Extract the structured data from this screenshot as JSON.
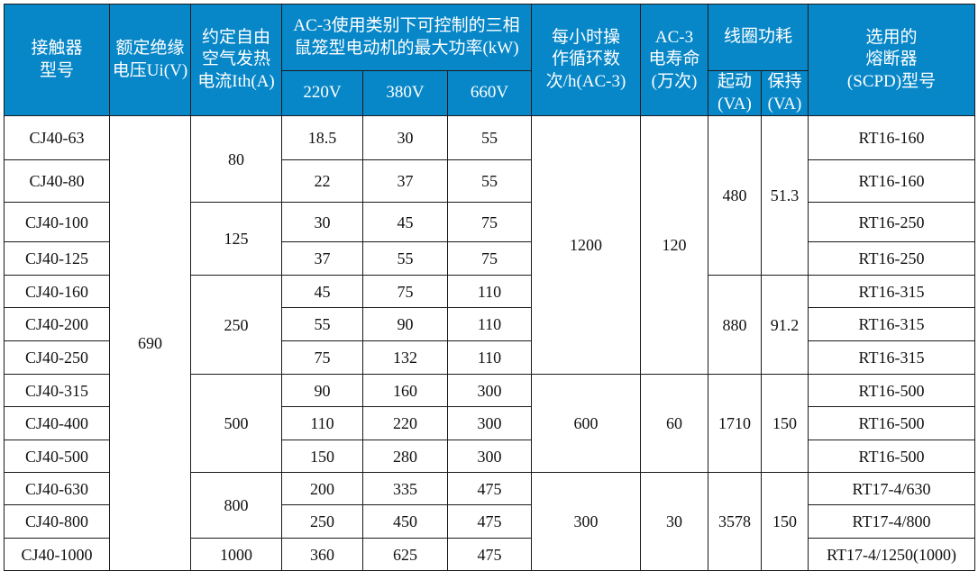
{
  "colors": {
    "header_bg": "#0787c8",
    "header_text": "#ffffff",
    "border": "#1a1a1a"
  },
  "header": {
    "model": "接触器\n型号",
    "ui": "额定绝缘\n电压Ui(V)",
    "ith": "约定自由\n空气发热\n电流Ith(A)",
    "power": "AC-3使用类别下可控制的三相\n鼠笼型电动机的最大功率(kW)",
    "power_sub": [
      "220V",
      "380V",
      "660V"
    ],
    "cycles": "每小时操\n作循环数\n次/h(AC-3)",
    "life": "AC-3\n电寿命\n(万次)",
    "coil": "线圈功耗",
    "coil_sub": [
      "起动\n(VA)",
      "保持\n(VA)"
    ],
    "fuse": "选用的\n熔断器\n(SCPD)型号"
  },
  "rows": [
    {
      "model": "CJ40-63",
      "p220": "18.5",
      "p380": "30",
      "p660": "55",
      "fuse": "RT16-160"
    },
    {
      "model": "CJ40-80",
      "p220": "22",
      "p380": "37",
      "p660": "55",
      "fuse": "RT16-160"
    },
    {
      "model": "CJ40-100",
      "p220": "30",
      "p380": "45",
      "p660": "75",
      "fuse": "RT16-250"
    },
    {
      "model": "CJ40-125",
      "p220": "37",
      "p380": "55",
      "p660": "75",
      "fuse": "RT16-250"
    },
    {
      "model": "CJ40-160",
      "p220": "45",
      "p380": "75",
      "p660": "110",
      "fuse": "RT16-315"
    },
    {
      "model": "CJ40-200",
      "p220": "55",
      "p380": "90",
      "p660": "110",
      "fuse": "RT16-315"
    },
    {
      "model": "CJ40-250",
      "p220": "75",
      "p380": "132",
      "p660": "110",
      "fuse": "RT16-315"
    },
    {
      "model": "CJ40-315",
      "p220": "90",
      "p380": "160",
      "p660": "300",
      "fuse": "RT16-500"
    },
    {
      "model": "CJ40-400",
      "p220": "110",
      "p380": "220",
      "p660": "300",
      "fuse": "RT16-500"
    },
    {
      "model": "CJ40-500",
      "p220": "150",
      "p380": "280",
      "p660": "300",
      "fuse": "RT16-500"
    },
    {
      "model": "CJ40-630",
      "p220": "200",
      "p380": "335",
      "p660": "475",
      "fuse": "RT17-4/630"
    },
    {
      "model": "CJ40-800",
      "p220": "250",
      "p380": "450",
      "p660": "475",
      "fuse": "RT17-4/800"
    },
    {
      "model": "CJ40-1000",
      "p220": "360",
      "p380": "625",
      "p660": "475",
      "fuse": "RT17-4/1250(1000)"
    }
  ],
  "ui_value": "690",
  "ith_groups": [
    {
      "start": 0,
      "span": 2,
      "value": "80"
    },
    {
      "start": 2,
      "span": 2,
      "value": "125"
    },
    {
      "start": 4,
      "span": 3,
      "value": "250"
    },
    {
      "start": 7,
      "span": 3,
      "value": "500"
    },
    {
      "start": 10,
      "span": 2,
      "value": "800"
    },
    {
      "start": 12,
      "span": 1,
      "value": "1000"
    }
  ],
  "cycle_groups": [
    {
      "start": 0,
      "span": 7,
      "cycles": "1200",
      "life": "120"
    },
    {
      "start": 7,
      "span": 3,
      "cycles": "600",
      "life": "60"
    },
    {
      "start": 10,
      "span": 3,
      "cycles": "300",
      "life": "30"
    }
  ],
  "coil_groups": [
    {
      "start": 0,
      "span": 4,
      "start_va": "480",
      "hold_va": "51.3"
    },
    {
      "start": 4,
      "span": 3,
      "start_va": "880",
      "hold_va": "91.2"
    },
    {
      "start": 7,
      "span": 3,
      "start_va": "1710",
      "hold_va": "150"
    },
    {
      "start": 10,
      "span": 3,
      "start_va": "3578",
      "hold_va": "150"
    }
  ]
}
